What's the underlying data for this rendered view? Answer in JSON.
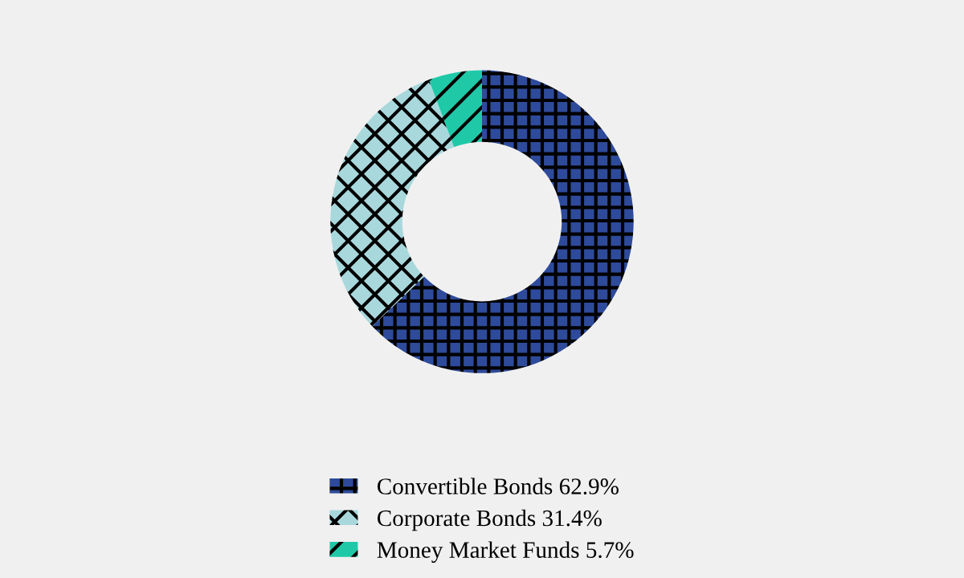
{
  "chart_data": {
    "type": "donut",
    "categories": [
      "Convertible Bonds",
      "Corporate Bonds",
      "Money Market Funds"
    ],
    "values": [
      62.9,
      31.4,
      5.7
    ],
    "value_labels": [
      "62.9%",
      "31.4%",
      "5.7%"
    ],
    "colors": [
      "#2e4a9a",
      "#a8d8dc",
      "#1fc9a8"
    ],
    "legend": "bottom"
  }
}
